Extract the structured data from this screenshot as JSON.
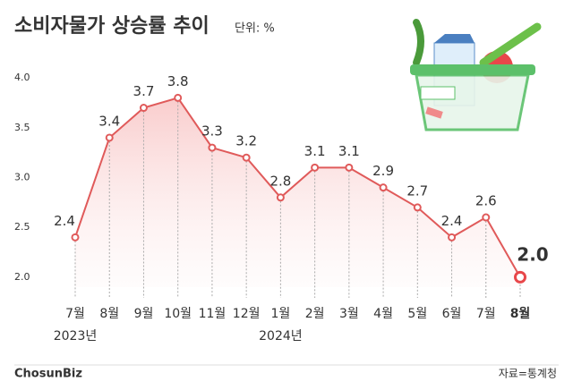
{
  "chart_data": {
    "type": "line",
    "title": "소비자물가 상승률 추이",
    "subtitle": "단위: %",
    "categories": [
      "7월",
      "8월",
      "9월",
      "10월",
      "11월",
      "12월",
      "1월",
      "2월",
      "3월",
      "4월",
      "5월",
      "6월",
      "7월",
      "8월"
    ],
    "year_labels": [
      "2023년",
      null,
      null,
      null,
      null,
      null,
      "2024년",
      null,
      null,
      null,
      null,
      null,
      null,
      null
    ],
    "values": [
      2.4,
      3.4,
      3.7,
      3.8,
      3.3,
      3.2,
      2.8,
      3.1,
      3.1,
      2.9,
      2.7,
      2.4,
      2.6,
      2.0
    ],
    "value_labels": [
      "2.4",
      "3.4",
      "3.7",
      "3.8",
      "3.3",
      "3.2",
      "2.8",
      "3.1",
      "3.1",
      "2.9",
      "2.7",
      "2.4",
      "2.6",
      "2.0"
    ],
    "color": "#e05a5a",
    "highlight_color": "#e8474a",
    "ylim": [
      1.9,
      4.1
    ],
    "yticks": [
      {
        "value": 2,
        "label": "2.0"
      },
      2.5,
      {
        "value": 3,
        "label": "3.0"
      },
      3.5,
      {
        "value": 4,
        "label": "4.0"
      }
    ],
    "grid": false,
    "source": "자료=통계청",
    "logo": "ChosunBiz"
  }
}
